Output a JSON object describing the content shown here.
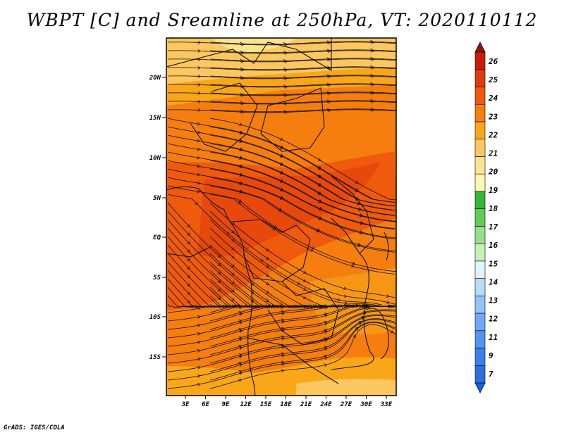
{
  "title": "WBPT [C] and Sreamline at 250hPa, VT: 2020110112",
  "credit": "GrADS: IGES/COLA",
  "map": {
    "lat_ticks": [
      "20N",
      "15N",
      "10N",
      "5N",
      "EQ",
      "5S",
      "10S",
      "15S"
    ],
    "lon_ticks": [
      "3E",
      "6E",
      "9E",
      "12E",
      "15E",
      "18E",
      "21E",
      "24E",
      "27E",
      "30E",
      "33E"
    ]
  },
  "colorbar": {
    "levels": [
      "7",
      "9",
      "11",
      "12",
      "13",
      "14",
      "15",
      "16",
      "17",
      "18",
      "19",
      "20",
      "21",
      "22",
      "23",
      "24",
      "25",
      "26"
    ],
    "colors": [
      "#1f5fd6",
      "#2b6fe0",
      "#3a80ea",
      "#5294ef",
      "#6fa9f3",
      "#93c3f6",
      "#b9dafa",
      "#e4f4fc",
      "#c7f0b9",
      "#95e08a",
      "#5fcc55",
      "#35b53a",
      "#fdf7b3",
      "#fde38e",
      "#fcc660",
      "#f9a619",
      "#f57e0f",
      "#ef5a0c",
      "#e03b0b",
      "#c81e06",
      "#a20d02"
    ]
  }
}
